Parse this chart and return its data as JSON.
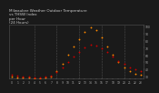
{
  "title": "Milwaukee Weather Outdoor Temperature\nvs THSW Index\nper Hour\n(24 Hours)",
  "hours": [
    0,
    1,
    2,
    3,
    4,
    5,
    6,
    7,
    8,
    9,
    10,
    11,
    12,
    13,
    14,
    15,
    16,
    17,
    18,
    19,
    20,
    21,
    22,
    23
  ],
  "temp": [
    32,
    31,
    30,
    30,
    29,
    29,
    30,
    31,
    36,
    42,
    50,
    58,
    64,
    70,
    74,
    73,
    69,
    64,
    58,
    52,
    47,
    43,
    40,
    38
  ],
  "thsw": [
    30,
    29,
    28,
    28,
    27,
    27,
    28,
    30,
    38,
    48,
    60,
    72,
    82,
    92,
    98,
    95,
    85,
    72,
    60,
    50,
    43,
    38,
    34,
    32
  ],
  "temp_color": "#cc0000",
  "thsw_color": "#ff8800",
  "bg_color": "#1a1a1a",
  "plot_bg_color": "#1a1a1a",
  "grid_color": "#555555",
  "title_color": "#cccccc",
  "tick_color": "#aaaaaa",
  "ylim": [
    27,
    102
  ],
  "yticks": [
    30,
    40,
    50,
    60,
    70,
    80,
    90,
    100
  ],
  "gridlines_at": [
    4,
    8,
    12,
    16,
    20
  ],
  "marker_size": 1.8,
  "title_fontsize": 3.0,
  "tick_fontsize": 2.2
}
